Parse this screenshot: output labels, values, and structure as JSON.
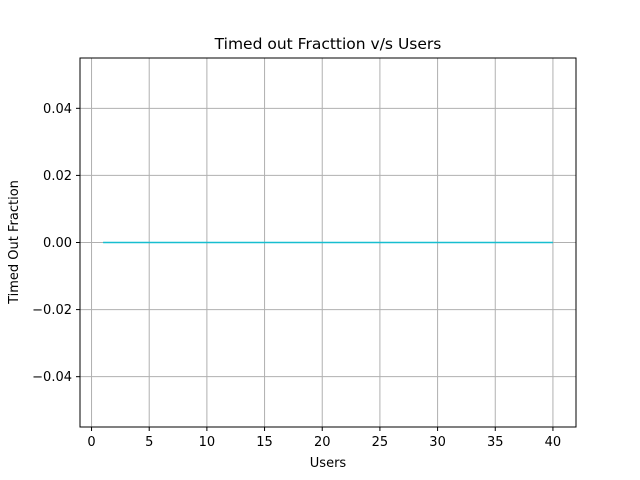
{
  "chart_data": {
    "type": "line",
    "title": "Timed out Fracttion v/s Users",
    "xlabel": "Users",
    "ylabel": "Timed Out Fraction",
    "xlim": [
      -1,
      42
    ],
    "ylim": [
      -0.055,
      0.055
    ],
    "xticks": [
      0,
      5,
      10,
      15,
      20,
      25,
      30,
      35,
      40
    ],
    "yticks": [
      -0.04,
      -0.02,
      0.0,
      0.02,
      0.04
    ],
    "xtick_labels": [
      "0",
      "5",
      "10",
      "15",
      "20",
      "25",
      "30",
      "35",
      "40"
    ],
    "ytick_labels": [
      "−0.04",
      "−0.02",
      "0.00",
      "0.02",
      "0.04"
    ],
    "grid": true,
    "series": [
      {
        "color": "#17becf",
        "x": [
          1,
          2,
          3,
          4,
          5,
          6,
          7,
          8,
          9,
          10,
          11,
          12,
          13,
          14,
          15,
          16,
          17,
          18,
          19,
          20,
          21,
          22,
          23,
          24,
          25,
          26,
          27,
          28,
          29,
          30,
          31,
          32,
          33,
          34,
          35,
          36,
          37,
          38,
          39,
          40
        ],
        "values": [
          0,
          0,
          0,
          0,
          0,
          0,
          0,
          0,
          0,
          0,
          0,
          0,
          0,
          0,
          0,
          0,
          0,
          0,
          0,
          0,
          0,
          0,
          0,
          0,
          0,
          0,
          0,
          0,
          0,
          0,
          0,
          0,
          0,
          0,
          0,
          0,
          0,
          0,
          0,
          0
        ]
      }
    ]
  }
}
